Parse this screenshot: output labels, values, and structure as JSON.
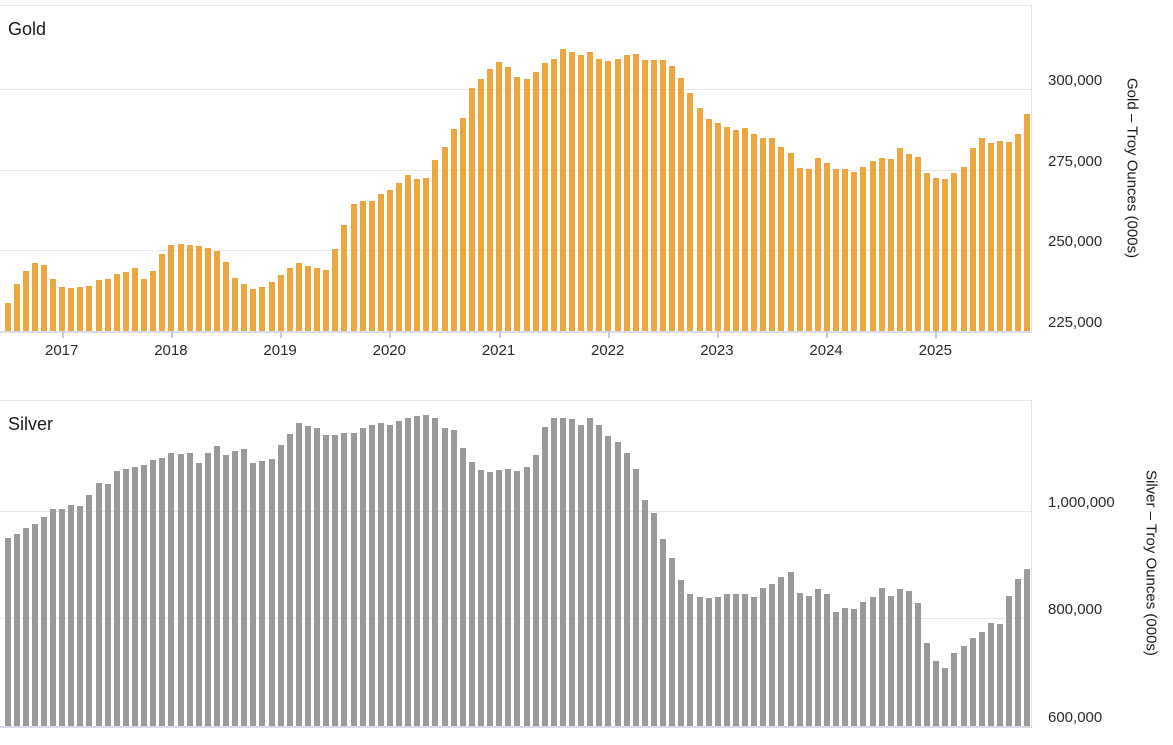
{
  "page": {
    "background": "#ffffff"
  },
  "chart_data": [
    {
      "type": "bar",
      "title": "Gold",
      "y_axis_title": "Gold – Troy Ounces (000s)",
      "color": "#eca63f",
      "unit": "thousand troy ounces",
      "frequency": "monthly",
      "start_month": "2016-07",
      "end_month": "2025-11",
      "grid": "horizontal",
      "legend": "none",
      "x_tick_labels": [
        "2017",
        "2018",
        "2019",
        "2020",
        "2021",
        "2022",
        "2023",
        "2024",
        "2025"
      ],
      "x_tick_month_indices": [
        6,
        18,
        30,
        42,
        54,
        66,
        78,
        90,
        102
      ],
      "x_axis_labels_visible": true,
      "y_tick_labels": [
        "300,000",
        "275,000",
        "250,000",
        "225,000"
      ],
      "y_tick_values": [
        300000,
        275000,
        250000,
        225000
      ],
      "ylim": [
        225000,
        326000
      ],
      "values": [
        233800,
        239500,
        243600,
        246000,
        245400,
        241000,
        238500,
        238200,
        238500,
        239000,
        240800,
        241200,
        242700,
        243300,
        244400,
        241200,
        243500,
        248800,
        251600,
        252000,
        251600,
        251300,
        250700,
        249800,
        246400,
        241500,
        239500,
        238100,
        238700,
        240200,
        242300,
        244600,
        246100,
        245100,
        244600,
        243900,
        250300,
        258000,
        264500,
        265300,
        265300,
        267400,
        268700,
        270800,
        273200,
        272200,
        272500,
        277900,
        281900,
        287600,
        290900,
        300300,
        303100,
        306100,
        308400,
        306800,
        303700,
        303200,
        305300,
        308200,
        309400,
        312300,
        311500,
        310400,
        311500,
        309400,
        308600,
        309400,
        310400,
        310800,
        309100,
        309100,
        309100,
        307000,
        303400,
        298600,
        294200,
        290800,
        289500,
        288300,
        287400,
        287800,
        285900,
        284700,
        284700,
        281900,
        280200,
        275400,
        275100,
        278700,
        277200,
        275100,
        275100,
        274400,
        275900,
        277700,
        278500,
        278200,
        281600,
        279700,
        278800,
        274000,
        272300,
        272100,
        274000,
        275900,
        281600,
        284900,
        283300,
        283900,
        283600,
        286200,
        292100
      ]
    },
    {
      "type": "bar",
      "title": "Silver",
      "y_axis_title": "Silver – Troy Ounces (000s)",
      "color": "#9a9a9a",
      "unit": "thousand troy ounces",
      "frequency": "monthly",
      "start_month": "2016-07",
      "end_month": "2025-11",
      "grid": "horizontal",
      "legend": "none",
      "x_tick_labels": [],
      "x_tick_month_indices": [],
      "x_axis_labels_visible": false,
      "y_tick_labels": [
        "1,000,000",
        "800,000",
        "600,000"
      ],
      "y_tick_values": [
        1000000,
        800000,
        600000
      ],
      "ylim": [
        600000,
        1205500
      ],
      "values": [
        950000,
        956000,
        967000,
        975000,
        989000,
        1003000,
        1004000,
        1011000,
        1008000,
        1029000,
        1052000,
        1049000,
        1074000,
        1077000,
        1081000,
        1085000,
        1095000,
        1098000,
        1107000,
        1105000,
        1107000,
        1089000,
        1107000,
        1121000,
        1104000,
        1110000,
        1114000,
        1088000,
        1092000,
        1096000,
        1122000,
        1142000,
        1162000,
        1157000,
        1153000,
        1141000,
        1141000,
        1144000,
        1145000,
        1153000,
        1160000,
        1162000,
        1160000,
        1167000,
        1172000,
        1176000,
        1178000,
        1173000,
        1153000,
        1150000,
        1116000,
        1091000,
        1076000,
        1071000,
        1076000,
        1078000,
        1074000,
        1081000,
        1103000,
        1155000,
        1173000,
        1173000,
        1170000,
        1159000,
        1172000,
        1159000,
        1139000,
        1128000,
        1107000,
        1078000,
        1020000,
        995000,
        947000,
        913000,
        871000,
        845000,
        840000,
        838000,
        840000,
        845000,
        845000,
        845000,
        840000,
        857000,
        863000,
        876000,
        887000,
        847000,
        842000,
        854000,
        845000,
        812000,
        820000,
        817000,
        831000,
        840000,
        856000,
        842000,
        854000,
        850000,
        828000,
        754000,
        721000,
        708000,
        735000,
        749000,
        763000,
        774000,
        791000,
        789000,
        842000,
        873000,
        892000
      ]
    }
  ]
}
